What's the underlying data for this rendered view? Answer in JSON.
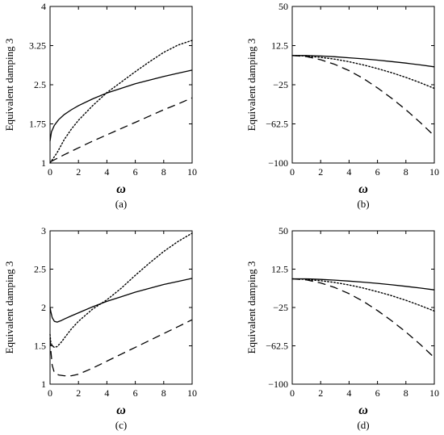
{
  "chart_data": [
    {
      "type": "line",
      "panel_label": "(a)",
      "xlabel": "ω",
      "ylabel": "Equivalent damping 3",
      "xlim": [
        0,
        10
      ],
      "ylim": [
        1,
        4
      ],
      "xticks": [
        0,
        2,
        4,
        6,
        8,
        10
      ],
      "xtick_labels": [
        "0",
        "2",
        "4",
        "6",
        "8",
        "10"
      ],
      "yticks": [
        1,
        1.75,
        2.5,
        3.25,
        4
      ],
      "ytick_labels": [
        "1",
        "1.75",
        "2.5",
        "3.25",
        "4"
      ],
      "grid": false,
      "series": [
        {
          "style": "solid",
          "x": [
            0,
            0.1,
            0.3,
            0.6,
            1,
            1.5,
            2,
            3,
            4,
            5,
            6,
            7,
            8,
            9,
            10
          ],
          "y": [
            1.42,
            1.6,
            1.72,
            1.83,
            1.93,
            2.02,
            2.1,
            2.23,
            2.34,
            2.43,
            2.52,
            2.59,
            2.66,
            2.72,
            2.78
          ]
        },
        {
          "style": "dotted",
          "x": [
            0,
            0.5,
            1,
            1.5,
            2,
            3,
            4,
            5,
            6,
            7,
            8,
            9,
            10
          ],
          "y": [
            1.0,
            1.2,
            1.45,
            1.65,
            1.82,
            2.1,
            2.35,
            2.55,
            2.75,
            2.94,
            3.12,
            3.26,
            3.35
          ]
        },
        {
          "style": "dashed",
          "x": [
            0,
            1,
            2,
            3,
            4,
            5,
            6,
            7,
            8,
            9,
            10
          ],
          "y": [
            1.02,
            1.16,
            1.29,
            1.42,
            1.54,
            1.66,
            1.78,
            1.9,
            2.02,
            2.13,
            2.25
          ]
        }
      ]
    },
    {
      "type": "line",
      "panel_label": "(b)",
      "xlabel": "ω",
      "ylabel": "Equivalent damping 3",
      "xlim": [
        0,
        10
      ],
      "ylim": [
        -100,
        50
      ],
      "xticks": [
        0,
        2,
        4,
        6,
        8,
        10
      ],
      "xtick_labels": [
        "0",
        "2",
        "4",
        "6",
        "8",
        "10"
      ],
      "yticks": [
        -100,
        -62.5,
        -25,
        12.5,
        50
      ],
      "ytick_labels": [
        "−100",
        "−62.5",
        "−25",
        "12.5",
        "50"
      ],
      "grid": false,
      "series": [
        {
          "style": "solid",
          "x": [
            0,
            1,
            2,
            3,
            4,
            5,
            6,
            7,
            8,
            9,
            10
          ],
          "y": [
            3,
            3,
            2.5,
            1.8,
            0.8,
            -0.2,
            -1.4,
            -2.8,
            -4.3,
            -6,
            -7.8
          ]
        },
        {
          "style": "dotted",
          "x": [
            0,
            1,
            2,
            3,
            4,
            5,
            6,
            7,
            8,
            9,
            10
          ],
          "y": [
            3,
            2.5,
            1.2,
            -0.5,
            -3,
            -6,
            -9.5,
            -13.5,
            -18,
            -23,
            -28.5
          ]
        },
        {
          "style": "dashed",
          "x": [
            0,
            1,
            2,
            3,
            4,
            5,
            6,
            7,
            8,
            9,
            10
          ],
          "y": [
            3,
            2,
            -1,
            -5.5,
            -11.5,
            -19,
            -28,
            -38,
            -49,
            -61,
            -74
          ]
        }
      ]
    },
    {
      "type": "line",
      "panel_label": "(c)",
      "xlabel": "ω",
      "ylabel": "Equivalent damping 3",
      "xlim": [
        0,
        10
      ],
      "ylim": [
        1,
        3
      ],
      "xticks": [
        0,
        2,
        4,
        6,
        8,
        10
      ],
      "xtick_labels": [
        "0",
        "2",
        "4",
        "6",
        "8",
        "10"
      ],
      "yticks": [
        1,
        1.5,
        2,
        2.5,
        3
      ],
      "ytick_labels": [
        "1",
        "1.5",
        "2",
        "2.5",
        "3"
      ],
      "grid": false,
      "series": [
        {
          "style": "solid",
          "x": [
            0,
            0.05,
            0.15,
            0.3,
            0.5,
            0.8,
            1,
            1.5,
            2,
            3,
            4,
            5,
            6,
            7,
            8,
            9,
            10
          ],
          "y": [
            2.0,
            1.95,
            1.87,
            1.82,
            1.81,
            1.83,
            1.85,
            1.89,
            1.93,
            2.01,
            2.08,
            2.14,
            2.2,
            2.25,
            2.3,
            2.34,
            2.38
          ]
        },
        {
          "style": "dotted",
          "x": [
            0,
            0.05,
            0.15,
            0.3,
            0.5,
            0.8,
            1,
            1.5,
            2,
            3,
            4,
            5,
            6,
            7,
            8,
            9,
            10
          ],
          "y": [
            1.65,
            1.55,
            1.5,
            1.48,
            1.49,
            1.55,
            1.6,
            1.72,
            1.82,
            1.98,
            2.1,
            2.25,
            2.42,
            2.58,
            2.73,
            2.86,
            2.97
          ]
        },
        {
          "style": "dashed",
          "x": [
            0,
            0.05,
            0.15,
            0.3,
            0.6,
            1,
            1.5,
            2,
            3,
            4,
            5,
            6,
            7,
            8,
            9,
            10
          ],
          "y": [
            1.6,
            1.45,
            1.25,
            1.15,
            1.12,
            1.11,
            1.11,
            1.13,
            1.21,
            1.3,
            1.39,
            1.48,
            1.57,
            1.66,
            1.75,
            1.84
          ]
        }
      ]
    },
    {
      "type": "line",
      "panel_label": "(d)",
      "xlabel": "ω",
      "ylabel": "Equivalent damping 3",
      "xlim": [
        0,
        10
      ],
      "ylim": [
        -100,
        50
      ],
      "xticks": [
        0,
        2,
        4,
        6,
        8,
        10
      ],
      "xtick_labels": [
        "0",
        "2",
        "4",
        "6",
        "8",
        "10"
      ],
      "yticks": [
        -100,
        -62.5,
        -25,
        12.5,
        50
      ],
      "ytick_labels": [
        "−100",
        "−62.5",
        "−25",
        "12.5",
        "50"
      ],
      "grid": false,
      "series": [
        {
          "style": "solid",
          "x": [
            0,
            1,
            2,
            3,
            4,
            5,
            6,
            7,
            8,
            9,
            10
          ],
          "y": [
            3,
            3,
            2.5,
            1.8,
            0.8,
            -0.2,
            -1.4,
            -2.8,
            -4.3,
            -6,
            -7.8
          ]
        },
        {
          "style": "dotted",
          "x": [
            0,
            1,
            2,
            3,
            4,
            5,
            6,
            7,
            8,
            9,
            10
          ],
          "y": [
            3,
            2.5,
            1.2,
            -0.5,
            -3,
            -6,
            -9.5,
            -13.5,
            -18,
            -23,
            -28.5
          ]
        },
        {
          "style": "dashed",
          "x": [
            0,
            1,
            2,
            3,
            4,
            5,
            6,
            7,
            8,
            9,
            10
          ],
          "y": [
            3,
            2,
            -1,
            -5.5,
            -11.5,
            -19,
            -28,
            -38,
            -49,
            -61,
            -74
          ]
        }
      ]
    }
  ]
}
